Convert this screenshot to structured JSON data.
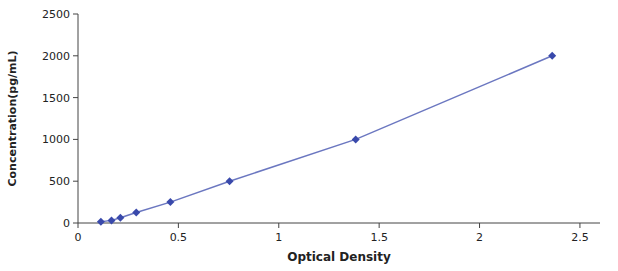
{
  "chart_data": {
    "type": "line",
    "x": [
      0.114,
      0.167,
      0.211,
      0.29,
      0.46,
      0.755,
      1.383,
      2.362
    ],
    "values": [
      15.6,
      31.25,
      62.5,
      125,
      250,
      500,
      1000,
      2000
    ],
    "color": "#3949ab",
    "marker": "diamond",
    "xlabel": "Optical Density",
    "ylabel": "Concentration(pg/mL)",
    "xlim": [
      0.0,
      2.6
    ],
    "ylim": [
      0,
      2500
    ],
    "xticks": [
      0,
      0.5,
      1,
      1.5,
      2,
      2.5
    ],
    "yticks": [
      0,
      500,
      1000,
      1500,
      2000,
      2500
    ]
  }
}
